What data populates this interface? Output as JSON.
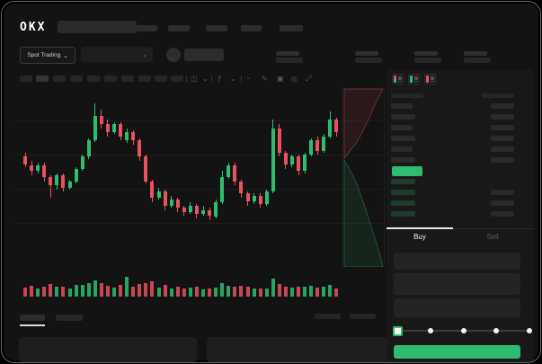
{
  "app": {
    "logo_text": "OKX"
  },
  "colors": {
    "green": "#2ebd70",
    "red": "#e8525f",
    "bg": "#131313",
    "panel": "#181818",
    "placeholder": "#2a2a2a",
    "text": "#eaecef",
    "text_dim": "#5f5f5f"
  },
  "header": {
    "nav_placeholder_count": 5
  },
  "subheader": {
    "market_selector": "Spot Trading",
    "chevron": "⌄",
    "stat_group_count": 4
  },
  "toolbar": {
    "timeframe_count": 10,
    "icons": [
      {
        "name": "chart-style-icon",
        "glyph": "◫"
      },
      {
        "name": "chevron-down-icon",
        "glyph": "⌄"
      },
      {
        "name": "indicators-icon",
        "glyph": "ƒ"
      },
      {
        "name": "chevron-down-icon",
        "glyph": "⌄"
      },
      {
        "name": "line-tool-icon",
        "glyph": "~"
      },
      {
        "name": "draw-tool-icon",
        "glyph": "✎"
      },
      {
        "name": "snapshot-icon",
        "glyph": "▣"
      },
      {
        "name": "settings-icon",
        "glyph": "◎"
      },
      {
        "name": "fullscreen-icon",
        "glyph": "⤢"
      }
    ]
  },
  "orderbook": {
    "view_modes": [
      "combined",
      "bids-only",
      "asks-only"
    ],
    "ask_row_count": 6,
    "bid_row_count": 4,
    "last_price_highlight": "#2ebd70"
  },
  "trade_panel": {
    "buy_tab": "Buy",
    "sell_tab": "Sell",
    "field_count": 3,
    "slider_stops": 5
  },
  "bottom_tabs": {
    "tab_count": 2,
    "right_control_count": 2,
    "panel_count": 2
  },
  "chart_data": {
    "type": "candlestick",
    "scale": "normalized 0-100 price units; no numeric axis labels are visible in the screenshot",
    "grid": "faint horizontal gridlines, no tick labels",
    "candles": [
      [
        62,
        64,
        57,
        58
      ],
      [
        58,
        60,
        53,
        55
      ],
      [
        55,
        59,
        54,
        58
      ],
      [
        58,
        59,
        50,
        52
      ],
      [
        52,
        53,
        42,
        48
      ],
      [
        48,
        54,
        46,
        53
      ],
      [
        53,
        54,
        45,
        47
      ],
      [
        47,
        51,
        46,
        50
      ],
      [
        50,
        57,
        49,
        56
      ],
      [
        56,
        63,
        55,
        62
      ],
      [
        62,
        71,
        61,
        70
      ],
      [
        70,
        88,
        69,
        82
      ],
      [
        82,
        85,
        76,
        78
      ],
      [
        78,
        80,
        72,
        74
      ],
      [
        74,
        79,
        73,
        78
      ],
      [
        78,
        79,
        70,
        72
      ],
      [
        70,
        76,
        69,
        74
      ],
      [
        74,
        75,
        68,
        70
      ],
      [
        70,
        71,
        60,
        62
      ],
      [
        62,
        63,
        49,
        50
      ],
      [
        50,
        51,
        40,
        42
      ],
      [
        42,
        47,
        41,
        45
      ],
      [
        45,
        46,
        36,
        38
      ],
      [
        38,
        43,
        37,
        41
      ],
      [
        41,
        42,
        35,
        37
      ],
      [
        37,
        38,
        33,
        35
      ],
      [
        35,
        40,
        34,
        38
      ],
      [
        38,
        39,
        32,
        34
      ],
      [
        34,
        38,
        33,
        36
      ],
      [
        36,
        37,
        31,
        33
      ],
      [
        33,
        41,
        32,
        40
      ],
      [
        40,
        55,
        39,
        52
      ],
      [
        52,
        59,
        51,
        58
      ],
      [
        58,
        59,
        48,
        50
      ],
      [
        50,
        51,
        42,
        44
      ],
      [
        44,
        45,
        38,
        40
      ],
      [
        40,
        44,
        39,
        43
      ],
      [
        43,
        44,
        37,
        39
      ],
      [
        39,
        46,
        38,
        45
      ],
      [
        45,
        80,
        44,
        76
      ],
      [
        76,
        78,
        62,
        64
      ],
      [
        64,
        65,
        56,
        58
      ],
      [
        58,
        63,
        57,
        62
      ],
      [
        62,
        63,
        53,
        55
      ],
      [
        55,
        64,
        54,
        63
      ],
      [
        63,
        71,
        62,
        70
      ],
      [
        70,
        72,
        63,
        65
      ],
      [
        65,
        73,
        64,
        72
      ],
      [
        72,
        84,
        71,
        80
      ],
      [
        80,
        81,
        72,
        74
      ]
    ],
    "volumes": [
      35,
      45,
      30,
      40,
      55,
      38,
      42,
      30,
      48,
      52,
      60,
      75,
      58,
      44,
      36,
      50,
      95,
      40,
      56,
      62,
      70,
      35,
      48,
      30,
      42,
      28,
      33,
      38,
      26,
      31,
      36,
      58,
      44,
      40,
      46,
      38,
      28,
      32,
      30,
      85,
      55,
      42,
      35,
      40,
      38,
      45,
      36,
      40,
      52,
      30
    ],
    "depth_panel": {
      "type": "depth",
      "orientation": "vertical",
      "asks_color": "#e8525f",
      "bids_color": "#2ebd70"
    }
  }
}
